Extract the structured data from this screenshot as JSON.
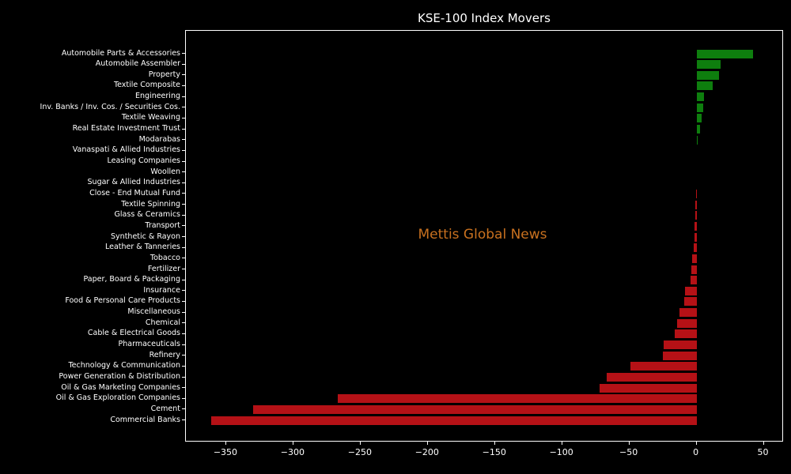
{
  "chart_data": {
    "type": "bar",
    "orientation": "horizontal",
    "title": "KSE-100 Index Movers",
    "watermark": "Mettis Global News",
    "categories": [
      "Automobile Parts & Accessories",
      "Automobile Assembler",
      "Property",
      "Textile Composite",
      "Engineering",
      "Inv. Banks / Inv. Cos. / Securities Cos.",
      "Textile Weaving",
      "Real Estate Investment Trust",
      "Modarabas",
      "Vanaspati & Allied Industries",
      "Leasing Companies",
      "Woollen",
      "Sugar & Allied Industries",
      "Close - End Mutual Fund",
      "Textile Spinning",
      "Glass & Ceramics",
      "Transport",
      "Synthetic & Rayon",
      "Leather & Tanneries",
      "Tobacco",
      "Fertilizer",
      "Paper, Board & Packaging",
      "Insurance",
      "Food & Personal Care Products",
      "Miscellaneous",
      "Chemical",
      "Cable & Electrical Goods",
      "Pharmaceuticals",
      "Refinery",
      "Technology & Communication",
      "Power Generation & Distribution",
      "Oil & Gas Marketing Companies",
      "Oil & Gas Exploration Companies",
      "Cement",
      "Commercial Banks"
    ],
    "values": [
      42,
      18,
      17,
      12,
      5.4,
      4.7,
      3.5,
      2.5,
      0.8,
      0,
      0,
      0,
      0,
      -0.4,
      -1.0,
      -1.2,
      -1.4,
      -1.6,
      -2.2,
      -3.1,
      -4.0,
      -4.5,
      -8.8,
      -9.3,
      -12.6,
      -14.4,
      -16.5,
      -24.3,
      -25.3,
      -49,
      -67,
      -72,
      -267,
      -330,
      -361
    ],
    "x_ticks": [
      -350,
      -300,
      -250,
      -200,
      -150,
      -100,
      -50,
      0,
      50
    ],
    "xlim": [
      -380,
      65
    ],
    "grid": false,
    "legend": "none",
    "colors": {
      "positive": "#0e7e0e",
      "negative": "#b51116",
      "background": "#000000",
      "axis": "#ffffff",
      "text": "#ffffff",
      "watermark": "#c9711f"
    }
  }
}
